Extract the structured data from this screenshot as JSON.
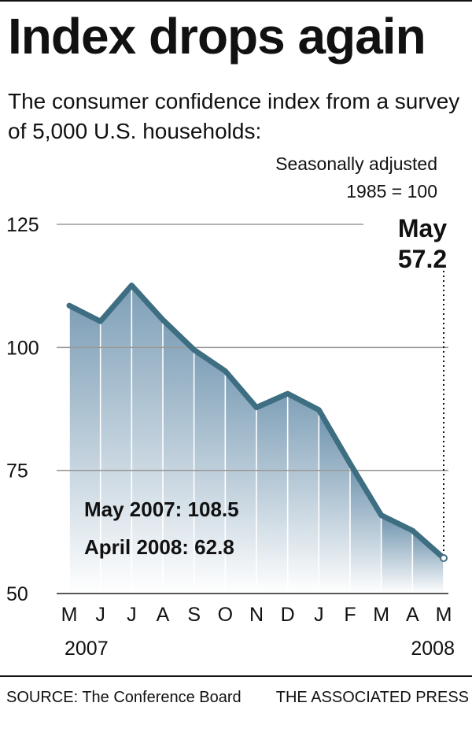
{
  "chart_data": {
    "type": "area",
    "title": "Index drops again",
    "subtitle": "The consumer confidence index from a survey of 5,000 U.S. households:",
    "notes": [
      "Seasonally adjusted",
      "1985 = 100"
    ],
    "categories": [
      "M",
      "J",
      "J",
      "A",
      "S",
      "O",
      "N",
      "D",
      "J",
      "F",
      "M",
      "A",
      "M"
    ],
    "period_labels": [
      "May 2007",
      "Jun 2007",
      "Jul 2007",
      "Aug 2007",
      "Sep 2007",
      "Oct 2007",
      "Nov 2007",
      "Dec 2007",
      "Jan 2008",
      "Feb 2008",
      "Mar 2008",
      "Apr 2008",
      "May 2008"
    ],
    "values": [
      108.5,
      105.3,
      112.6,
      105.6,
      99.5,
      95.2,
      87.8,
      90.6,
      87.3,
      76.4,
      65.9,
      62.8,
      57.2
    ],
    "year_labels": [
      "2007",
      "2008"
    ],
    "yticks": [
      50,
      75,
      100,
      125
    ],
    "ylim": [
      50,
      125
    ],
    "grid": true,
    "xlabel": "",
    "ylabel": "",
    "callout": {
      "label": "May",
      "value": "57.2"
    },
    "annotations": [
      "May 2007: 108.5",
      "April 2008: 62.8"
    ],
    "colors": {
      "line": "#3e6e82",
      "fill_top": "#7e9fb7",
      "fill_top_2008": "#6d92ad",
      "fill_bottom": "#ffffff",
      "grid": "#9a9a9a",
      "text": "#111111"
    }
  },
  "footer": {
    "source": "SOURCE: The Conference Board",
    "credit": "THE ASSOCIATED PRESS"
  }
}
